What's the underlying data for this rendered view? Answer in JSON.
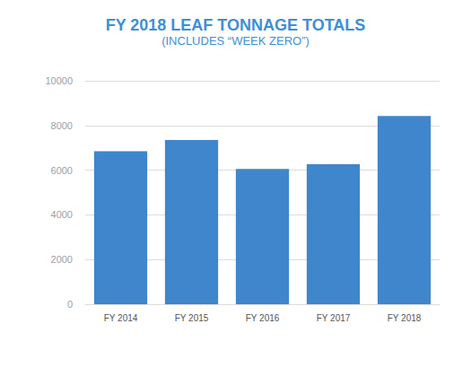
{
  "chart_data": {
    "type": "bar",
    "title": "FY 2018 LEAF TONNAGE TOTALS",
    "subtitle": "(INCLUDES “WEEK ZERO”)",
    "categories": [
      "FY 2014",
      "FY 2015",
      "FY 2016",
      "FY 2017",
      "FY 2018"
    ],
    "values": [
      6850,
      7350,
      6050,
      6270,
      8420
    ],
    "color": "#3f86cc",
    "ylim": [
      0,
      10000
    ],
    "yticks": [
      0,
      2000,
      4000,
      6000,
      8000,
      10000
    ],
    "grid": true
  }
}
